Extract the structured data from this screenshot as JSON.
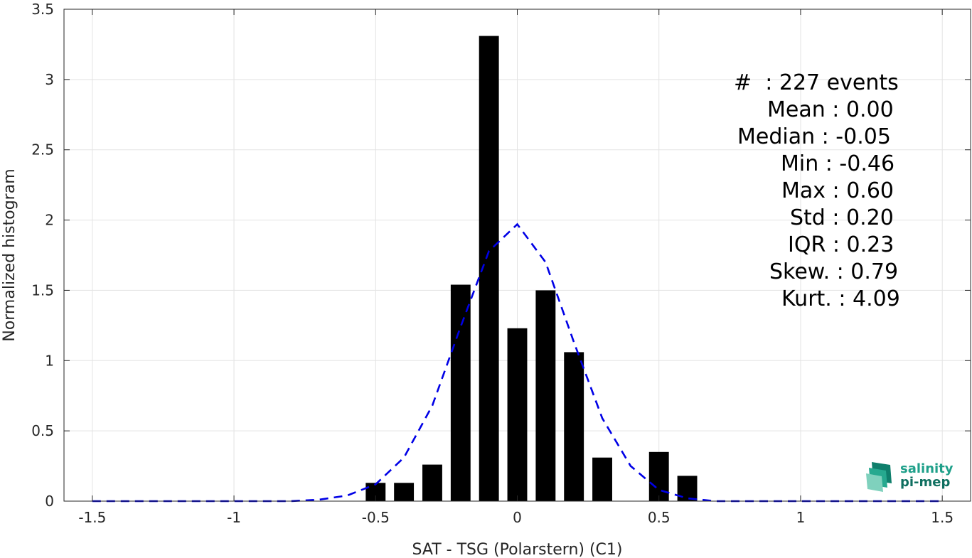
{
  "chart_data": {
    "type": "bar",
    "xlabel": "SAT - TSG (Polarstern) (C1)",
    "ylabel": "Normalized histogram",
    "xlim": [
      -1.6,
      1.6
    ],
    "ylim": [
      0,
      3.5
    ],
    "xticks": [
      -1.5,
      -1,
      -0.5,
      0,
      0.5,
      1,
      1.5
    ],
    "xtick_labels": [
      "-1.5",
      "-1",
      "-0.5",
      "0",
      "0.5",
      "1",
      "1.5"
    ],
    "yticks": [
      0,
      0.5,
      1,
      1.5,
      2,
      2.5,
      3,
      3.5
    ],
    "ytick_labels": [
      "0",
      "0.5",
      "1",
      "1.5",
      "2",
      "2.5",
      "3",
      "3.5"
    ],
    "grid": true,
    "bar_color": "#000000",
    "bar_width": 0.07,
    "bars": {
      "x": [
        -0.5,
        -0.4,
        -0.3,
        -0.2,
        -0.1,
        0.0,
        0.1,
        0.2,
        0.3,
        0.5,
        0.6
      ],
      "y": [
        0.13,
        0.13,
        0.26,
        1.54,
        3.31,
        1.23,
        1.5,
        1.06,
        0.31,
        0.35,
        0.18
      ]
    },
    "fit_curve": {
      "style": "dashed",
      "color": "#0000e6",
      "x": [
        -1.5,
        -1.4,
        -1.3,
        -1.2,
        -1.1,
        -1.0,
        -0.9,
        -0.8,
        -0.7,
        -0.6,
        -0.5,
        -0.4,
        -0.3,
        -0.2,
        -0.1,
        0.0,
        0.1,
        0.2,
        0.3,
        0.4,
        0.5,
        0.6,
        0.7,
        0.8,
        0.9,
        1.0,
        1.1,
        1.2,
        1.3,
        1.4,
        1.5
      ],
      "y": [
        0,
        0,
        0,
        0,
        0,
        0,
        0,
        0,
        0.01,
        0.04,
        0.12,
        0.31,
        0.68,
        1.24,
        1.78,
        1.97,
        1.7,
        1.13,
        0.59,
        0.25,
        0.08,
        0.02,
        0,
        0,
        0,
        0,
        0,
        0,
        0,
        0,
        0
      ]
    },
    "stats": [
      "#  : 227 events",
      "Mean : 0.00",
      "Median : -0.05",
      "Min : -0.46",
      "Max : 0.60",
      "Std : 0.20",
      "IQR : 0.23",
      "Skew. : 0.79",
      "Kurt. : 4.09"
    ]
  },
  "logo": {
    "line1": "salinity",
    "line2": "pi-mep",
    "color": "#1fa08a"
  }
}
